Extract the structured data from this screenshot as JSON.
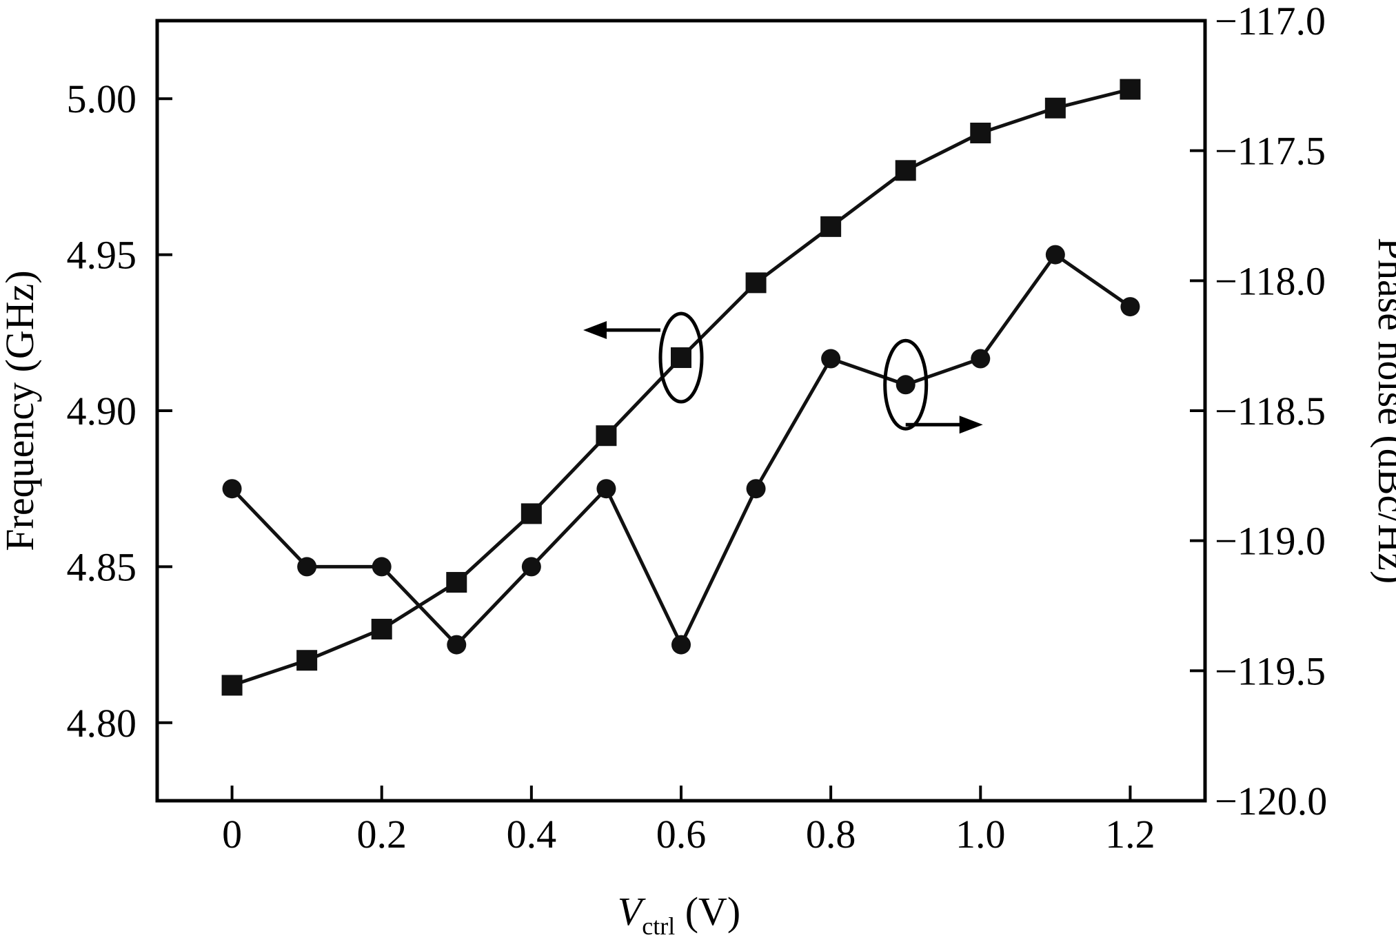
{
  "chart_data": {
    "type": "line",
    "title": "",
    "x": [
      0,
      0.1,
      0.2,
      0.3,
      0.4,
      0.5,
      0.6,
      0.7,
      0.8,
      0.9,
      1.0,
      1.1,
      1.2
    ],
    "xlabel": {
      "main": "V",
      "sub": "ctrl",
      "unit": " (V)"
    },
    "ylabel_left": "Frequency (GHz)",
    "ylabel_right": "Phase noise (dBc/Hz)",
    "xlim": [
      -0.1,
      1.3
    ],
    "ylim_left": [
      4.775,
      5.025
    ],
    "ylim_right": [
      -120.0,
      -117.0
    ],
    "x_ticks": [
      {
        "value": 0,
        "label": "0"
      },
      {
        "value": 0.2,
        "label": "0.2"
      },
      {
        "value": 0.4,
        "label": "0.4"
      },
      {
        "value": 0.6,
        "label": "0.6"
      },
      {
        "value": 0.8,
        "label": "0.8"
      },
      {
        "value": 1.0,
        "label": "1.0"
      },
      {
        "value": 1.2,
        "label": "1.2"
      }
    ],
    "y_ticks_left": [
      {
        "value": 4.8,
        "label": "4.80"
      },
      {
        "value": 4.85,
        "label": "4.85"
      },
      {
        "value": 4.9,
        "label": "4.90"
      },
      {
        "value": 4.95,
        "label": "4.95"
      },
      {
        "value": 5.0,
        "label": "5.00"
      }
    ],
    "y_ticks_right": [
      {
        "value": -120.0,
        "label": "−120.0"
      },
      {
        "value": -119.5,
        "label": "−119.5"
      },
      {
        "value": -119.0,
        "label": "−119.0"
      },
      {
        "value": -118.5,
        "label": "−118.5"
      },
      {
        "value": -118.0,
        "label": "−118.0"
      },
      {
        "value": -117.5,
        "label": "−117.5"
      },
      {
        "value": -117.0,
        "label": "−117.0"
      }
    ],
    "series": [
      {
        "axis": "left",
        "marker": "square",
        "color": "#111111",
        "values": [
          4.812,
          4.82,
          4.83,
          4.845,
          4.867,
          4.892,
          4.917,
          4.941,
          4.959,
          4.977,
          4.989,
          4.997,
          5.003
        ]
      },
      {
        "axis": "right",
        "marker": "circle",
        "color": "#111111",
        "values": [
          -118.8,
          -119.1,
          -119.1,
          -119.4,
          -119.1,
          -118.8,
          -119.4,
          -118.8,
          -118.3,
          -118.4,
          -118.3,
          -117.9,
          -118.1
        ]
      }
    ],
    "annotations": [
      {
        "type": "ellipse-arrow",
        "target_series": 0,
        "at_x": 0.6,
        "direction": "left",
        "meaning": "left axis"
      },
      {
        "type": "ellipse-arrow",
        "target_series": 1,
        "at_x": 0.9,
        "direction": "right",
        "meaning": "right axis"
      }
    ],
    "grid": false,
    "legend": "none"
  }
}
